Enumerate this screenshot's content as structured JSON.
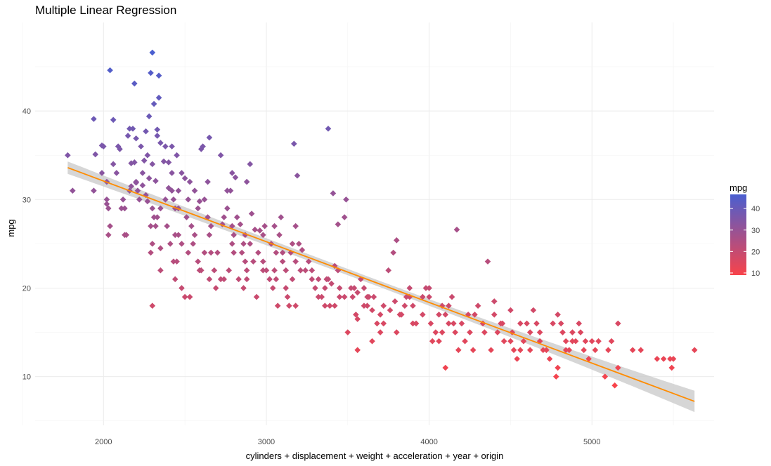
{
  "chart_data": {
    "type": "scatter",
    "title": "Multiple Linear Regression",
    "xlabel": "cylinders + displacement + weight + acceleration + year + origin",
    "ylabel": "mpg",
    "xlim": [
      1580,
      5750
    ],
    "ylim": [
      4.5,
      50
    ],
    "x_ticks": [
      2000,
      3000,
      4000,
      5000
    ],
    "y_ticks": [
      10,
      20,
      30,
      40
    ],
    "grid": true,
    "legend": {
      "title": "mpg",
      "placement": "right",
      "ticks": [
        10,
        20,
        30,
        40
      ],
      "range": [
        9,
        46.6
      ],
      "low_color": "#f8434a",
      "high_color": "#4a5fd0"
    },
    "fit_line": {
      "x": [
        1780,
        5630
      ],
      "y": [
        33.6,
        7.2
      ],
      "color": "#ff8c00",
      "band_color": "#c8c8c8",
      "ci_half_width_start": 0.7,
      "ci_half_width_mid": 0.35,
      "ci_half_width_end": 1.2
    },
    "points": [
      [
        1780,
        35
      ],
      [
        1810,
        31
      ],
      [
        1940,
        39.1
      ],
      [
        1950,
        35.1
      ],
      [
        1940,
        31
      ],
      [
        1990,
        36.1
      ],
      [
        2000,
        36
      ],
      [
        2020,
        29.5
      ],
      [
        2030,
        29
      ],
      [
        2020,
        32
      ],
      [
        2040,
        27
      ],
      [
        2030,
        26
      ],
      [
        2060,
        39
      ],
      [
        2040,
        44.6
      ],
      [
        2100,
        35.7
      ],
      [
        2130,
        29
      ],
      [
        2110,
        29
      ],
      [
        2140,
        26
      ],
      [
        2130,
        26
      ],
      [
        2160,
        38
      ],
      [
        2150,
        37.2
      ],
      [
        2190,
        43.1
      ],
      [
        2180,
        38
      ],
      [
        2170,
        34.1
      ],
      [
        2190,
        34.2
      ],
      [
        2200,
        31.9
      ],
      [
        2170,
        31.5
      ],
      [
        2210,
        31
      ],
      [
        2220,
        30
      ],
      [
        2200,
        36.9
      ],
      [
        2250,
        34.4
      ],
      [
        2260,
        37.7
      ],
      [
        2280,
        39.4
      ],
      [
        2290,
        44.3
      ],
      [
        2300,
        46.6
      ],
      [
        2310,
        40.8
      ],
      [
        2340,
        44
      ],
      [
        2340,
        41.5
      ],
      [
        2330,
        37.9
      ],
      [
        2330,
        37.2
      ],
      [
        2350,
        36.4
      ],
      [
        2300,
        34
      ],
      [
        2320,
        32.1
      ],
      [
        2280,
        32.4
      ],
      [
        2240,
        31.6
      ],
      [
        2260,
        30.5
      ],
      [
        2270,
        29.8
      ],
      [
        2300,
        29
      ],
      [
        2310,
        28
      ],
      [
        2330,
        28
      ],
      [
        2350,
        29
      ],
      [
        2290,
        27
      ],
      [
        2320,
        27
      ],
      [
        2300,
        25
      ],
      [
        2350,
        24.5
      ],
      [
        2290,
        24
      ],
      [
        2300,
        18
      ],
      [
        2350,
        22
      ],
      [
        2370,
        34.3
      ],
      [
        2380,
        36
      ],
      [
        2400,
        34.2
      ],
      [
        2420,
        33
      ],
      [
        2420,
        36
      ],
      [
        2450,
        35
      ],
      [
        2400,
        31.3
      ],
      [
        2460,
        31
      ],
      [
        2430,
        30
      ],
      [
        2440,
        29
      ],
      [
        2390,
        27
      ],
      [
        2410,
        25
      ],
      [
        2440,
        26
      ],
      [
        2460,
        26
      ],
      [
        2480,
        25
      ],
      [
        2450,
        23
      ],
      [
        2430,
        23
      ],
      [
        2440,
        21
      ],
      [
        2480,
        20
      ],
      [
        2500,
        19
      ],
      [
        2530,
        19
      ],
      [
        2500,
        32.4
      ],
      [
        2530,
        32
      ],
      [
        2510,
        28
      ],
      [
        2540,
        27
      ],
      [
        2560,
        26
      ],
      [
        2550,
        25
      ],
      [
        2520,
        24
      ],
      [
        2580,
        23
      ],
      [
        2590,
        22
      ],
      [
        2600,
        22
      ],
      [
        2600,
        35.7
      ],
      [
        2650,
        37
      ],
      [
        2610,
        36
      ],
      [
        2590,
        29.8
      ],
      [
        2620,
        30
      ],
      [
        2640,
        28
      ],
      [
        2650,
        26
      ],
      [
        2620,
        24
      ],
      [
        2660,
        24
      ],
      [
        2650,
        21
      ],
      [
        2680,
        22
      ],
      [
        2690,
        20
      ],
      [
        2720,
        35
      ],
      [
        2730,
        27.2
      ],
      [
        2760,
        31
      ],
      [
        2760,
        29
      ],
      [
        2780,
        31
      ],
      [
        2790,
        27
      ],
      [
        2790,
        25
      ],
      [
        2800,
        24
      ],
      [
        2770,
        22
      ],
      [
        2740,
        21
      ],
      [
        2720,
        21
      ],
      [
        2790,
        33
      ],
      [
        2810,
        32.5
      ],
      [
        2820,
        28
      ],
      [
        2840,
        27.2
      ],
      [
        2870,
        26
      ],
      [
        2860,
        25
      ],
      [
        2850,
        24
      ],
      [
        2870,
        23
      ],
      [
        2880,
        22
      ],
      [
        2830,
        21
      ],
      [
        2860,
        20
      ],
      [
        2900,
        34
      ],
      [
        2910,
        28.4
      ],
      [
        2930,
        26.6
      ],
      [
        2900,
        25
      ],
      [
        2950,
        24
      ],
      [
        2980,
        23
      ],
      [
        3000,
        22
      ],
      [
        3020,
        21
      ],
      [
        2940,
        19
      ],
      [
        2960,
        26.5
      ],
      [
        2990,
        27
      ],
      [
        3030,
        25
      ],
      [
        3080,
        26
      ],
      [
        3060,
        24
      ],
      [
        3100,
        23
      ],
      [
        3050,
        22
      ],
      [
        3040,
        20
      ],
      [
        3070,
        18
      ],
      [
        3090,
        28
      ],
      [
        3150,
        24
      ],
      [
        3120,
        22
      ],
      [
        3170,
        36.3
      ],
      [
        3190,
        32.7
      ],
      [
        3180,
        27
      ],
      [
        3200,
        25
      ],
      [
        3220,
        24.3
      ],
      [
        3210,
        22
      ],
      [
        3160,
        21
      ],
      [
        3130,
        19
      ],
      [
        3140,
        18
      ],
      [
        3180,
        18
      ],
      [
        3280,
        22
      ],
      [
        3300,
        20
      ],
      [
        3320,
        19
      ],
      [
        3340,
        19
      ],
      [
        3360,
        18
      ],
      [
        3380,
        38
      ],
      [
        3410,
        30.7
      ],
      [
        3440,
        27.2
      ],
      [
        3490,
        30
      ],
      [
        3480,
        28
      ],
      [
        3420,
        22.5
      ],
      [
        3440,
        22
      ],
      [
        3380,
        21
      ],
      [
        3400,
        20.5
      ],
      [
        3450,
        19
      ],
      [
        3420,
        18
      ],
      [
        3390,
        18
      ],
      [
        3500,
        15
      ],
      [
        3530,
        19
      ],
      [
        3540,
        20
      ],
      [
        3560,
        19.5
      ],
      [
        3580,
        21
      ],
      [
        3600,
        20
      ],
      [
        3620,
        18
      ],
      [
        3650,
        17.5
      ],
      [
        3560,
        16.5
      ],
      [
        3560,
        13
      ],
      [
        3600,
        18
      ],
      [
        3630,
        19
      ],
      [
        3650,
        14
      ],
      [
        3680,
        16
      ],
      [
        3700,
        15
      ],
      [
        3720,
        16
      ],
      [
        3750,
        22
      ],
      [
        3780,
        24
      ],
      [
        3800,
        25.4
      ],
      [
        3790,
        18.5
      ],
      [
        3760,
        17.5
      ],
      [
        3800,
        15
      ],
      [
        3830,
        17
      ],
      [
        3860,
        19
      ],
      [
        3880,
        19
      ],
      [
        3900,
        18
      ],
      [
        3920,
        16
      ],
      [
        3960,
        19
      ],
      [
        3980,
        20
      ],
      [
        4000,
        20
      ],
      [
        4010,
        16
      ],
      [
        4020,
        14
      ],
      [
        4040,
        15
      ],
      [
        4060,
        14
      ],
      [
        4080,
        15
      ],
      [
        4100,
        17
      ],
      [
        4120,
        18
      ],
      [
        4140,
        19
      ],
      [
        4160,
        15
      ],
      [
        4180,
        13
      ],
      [
        4100,
        11
      ],
      [
        4150,
        16
      ],
      [
        4170,
        26.6
      ],
      [
        4200,
        16
      ],
      [
        4240,
        17
      ],
      [
        4250,
        15
      ],
      [
        4270,
        13
      ],
      [
        4300,
        18
      ],
      [
        4330,
        16
      ],
      [
        4360,
        23
      ],
      [
        4380,
        13
      ],
      [
        4400,
        18.5
      ],
      [
        4420,
        15
      ],
      [
        4450,
        16
      ],
      [
        4460,
        14
      ],
      [
        4500,
        17.5
      ],
      [
        4510,
        15
      ],
      [
        4520,
        13
      ],
      [
        4540,
        12
      ],
      [
        4560,
        13
      ],
      [
        4580,
        14
      ],
      [
        4600,
        16
      ],
      [
        4620,
        15
      ],
      [
        4640,
        17.5
      ],
      [
        4660,
        16
      ],
      [
        4680,
        14
      ],
      [
        4700,
        13
      ],
      [
        4720,
        13
      ],
      [
        4760,
        16
      ],
      [
        4780,
        10
      ],
      [
        4790,
        11
      ],
      [
        4810,
        16
      ],
      [
        4820,
        15
      ],
      [
        4840,
        14
      ],
      [
        4860,
        13
      ],
      [
        4880,
        15
      ],
      [
        4900,
        14
      ],
      [
        4920,
        16
      ],
      [
        4950,
        13
      ],
      [
        4960,
        14
      ],
      [
        5000,
        14
      ],
      [
        5040,
        14
      ],
      [
        5080,
        10
      ],
      [
        5100,
        13
      ],
      [
        5120,
        14
      ],
      [
        5140,
        9
      ],
      [
        5160,
        11
      ],
      [
        5160,
        16
      ],
      [
        5250,
        13
      ],
      [
        5300,
        13
      ],
      [
        5400,
        12
      ],
      [
        5440,
        12
      ],
      [
        5480,
        12
      ],
      [
        5490,
        11
      ],
      [
        5500,
        12
      ],
      [
        5630,
        13
      ],
      [
        4980,
        12
      ],
      [
        5020,
        13
      ],
      [
        4500,
        14
      ],
      [
        4560,
        16
      ],
      [
        4620,
        13
      ],
      [
        4680,
        15
      ],
      [
        4740,
        12
      ],
      [
        4790,
        17
      ],
      [
        4840,
        13
      ],
      [
        4880,
        14
      ],
      [
        4930,
        15
      ],
      [
        4400,
        17
      ],
      [
        4440,
        16
      ],
      [
        4340,
        15
      ],
      [
        4280,
        17
      ],
      [
        4220,
        14
      ],
      [
        4120,
        16
      ],
      [
        4060,
        17
      ],
      [
        3960,
        17
      ],
      [
        3900,
        16
      ],
      [
        3850,
        18
      ],
      [
        3700,
        17
      ],
      [
        3660,
        19
      ],
      [
        3550,
        17
      ],
      [
        3480,
        19
      ],
      [
        3360,
        20
      ],
      [
        3280,
        21
      ],
      [
        3240,
        22
      ],
      [
        3180,
        23
      ],
      [
        3120,
        20
      ],
      [
        3060,
        21
      ],
      [
        2980,
        22
      ],
      [
        2920,
        23
      ],
      [
        2880,
        21
      ],
      [
        2800,
        26
      ],
      [
        2740,
        28
      ],
      [
        2700,
        24
      ],
      [
        2660,
        27
      ],
      [
        2580,
        29
      ],
      [
        2560,
        31
      ],
      [
        2520,
        30
      ],
      [
        2480,
        33
      ],
      [
        2460,
        29
      ],
      [
        2240,
        33
      ],
      [
        2200,
        32
      ],
      [
        2160,
        31
      ],
      [
        2120,
        30
      ],
      [
        2080,
        33
      ],
      [
        2020,
        30
      ],
      [
        1990,
        33
      ],
      [
        2060,
        34
      ],
      [
        2090,
        36
      ],
      [
        2230,
        36
      ],
      [
        2270,
        35
      ],
      [
        2380,
        30
      ],
      [
        2420,
        31
      ],
      [
        2640,
        32
      ],
      [
        2880,
        32
      ],
      [
        2980,
        26
      ],
      [
        3050,
        27
      ],
      [
        3100,
        24
      ],
      [
        3160,
        25
      ],
      [
        3260,
        23
      ],
      [
        3320,
        21
      ],
      [
        3370,
        21
      ],
      [
        3450,
        20
      ],
      [
        3520,
        20
      ],
      [
        3620,
        19
      ],
      [
        3720,
        18
      ],
      [
        3820,
        17
      ],
      [
        3880,
        20
      ],
      [
        4000,
        19
      ],
      [
        4080,
        18
      ]
    ]
  }
}
